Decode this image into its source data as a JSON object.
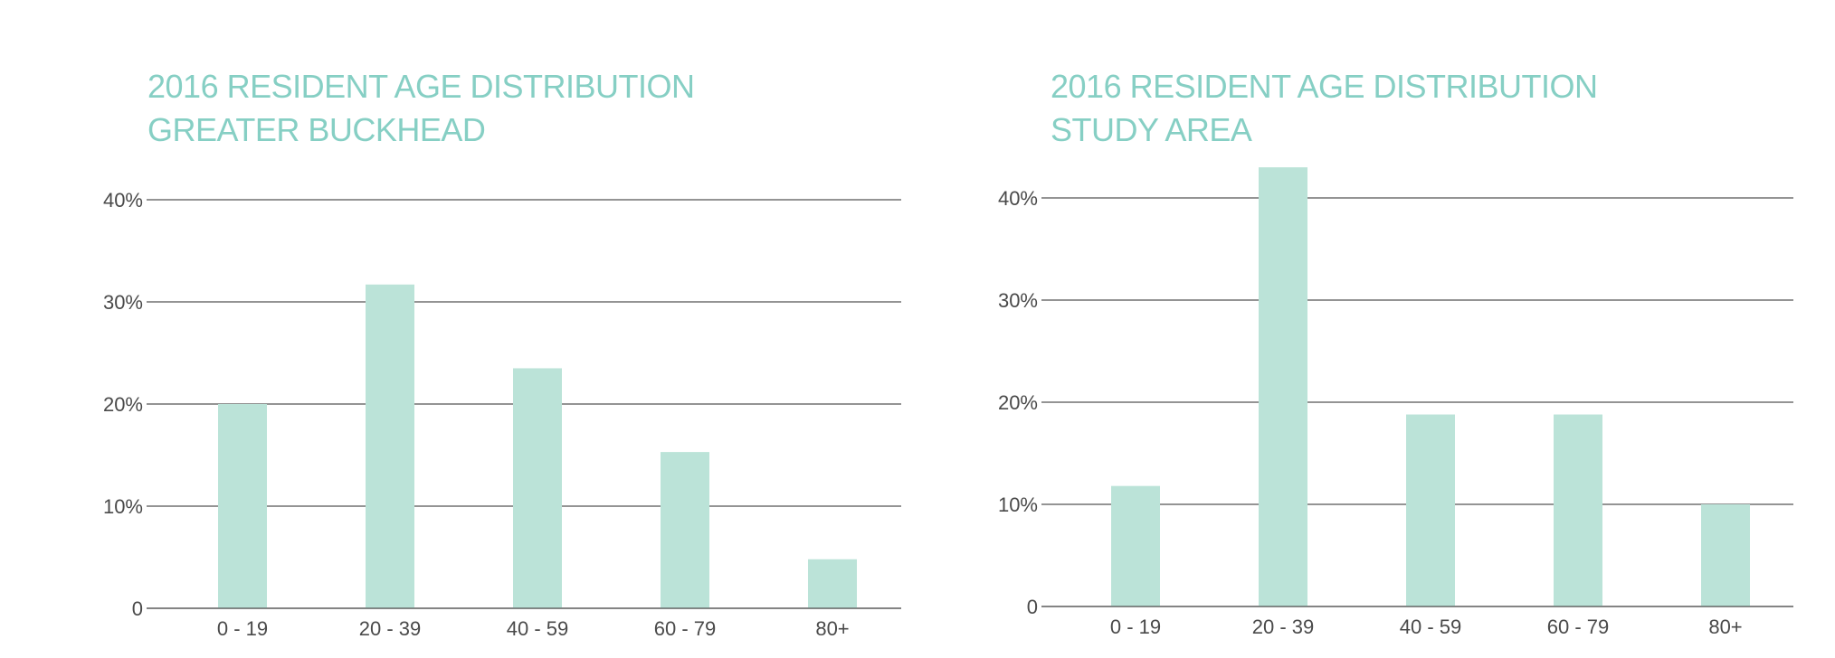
{
  "colors": {
    "title": "#86cfc4",
    "bar": "#bbe3d8",
    "grid": "#555555",
    "label": "#4a4a4a"
  },
  "chart_data": [
    {
      "type": "bar",
      "title": [
        "2016 RESIDENT AGE DISTRIBUTION",
        "GREATER BUCKHEAD"
      ],
      "categories": [
        "0 - 19",
        "20 - 39",
        "40 - 59",
        "60 - 79",
        "80+"
      ],
      "values": [
        20,
        31.7,
        23.5,
        15.3,
        4.8
      ],
      "y_ticks": [
        0,
        10,
        20,
        30,
        40
      ],
      "y_tick_labels": [
        "0",
        "10%",
        "20%",
        "30%",
        "40%"
      ],
      "ylim": [
        0,
        40
      ],
      "grid": true,
      "xlabel": "",
      "ylabel": ""
    },
    {
      "type": "bar",
      "title": [
        "2016 RESIDENT AGE DISTRIBUTION",
        "STUDY AREA"
      ],
      "categories": [
        "0 - 19",
        "20 - 39",
        "40 - 59",
        "60 - 79",
        "80+"
      ],
      "values": [
        11.8,
        43,
        18.8,
        18.8,
        10
      ],
      "y_ticks": [
        0,
        10,
        20,
        30,
        40
      ],
      "y_tick_labels": [
        "0",
        "10%",
        "20%",
        "30%",
        "40%"
      ],
      "ylim": [
        0,
        40
      ],
      "grid": true,
      "xlabel": "",
      "ylabel": ""
    }
  ]
}
